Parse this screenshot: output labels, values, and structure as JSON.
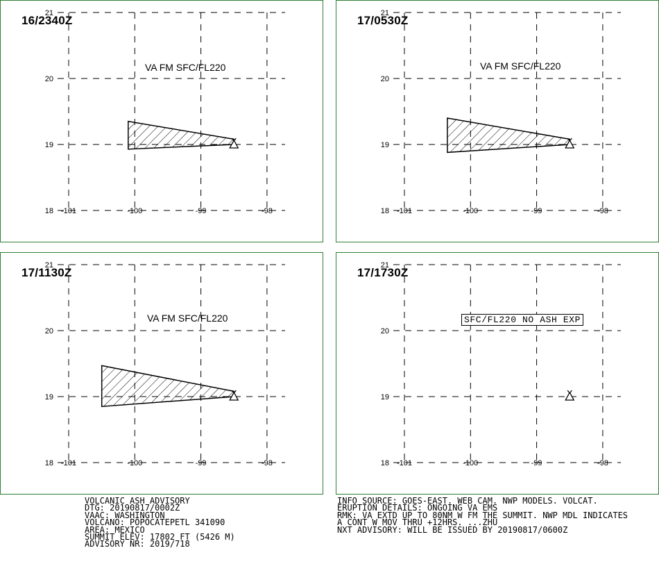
{
  "panels": [
    {
      "time": "16/2340Z",
      "label": "VA FM SFC/FL220",
      "polygon": [
        [
          -100.1,
          19.35
        ],
        [
          -98.5,
          19.08
        ],
        [
          -98.5,
          19.0
        ],
        [
          -100.1,
          18.93
        ]
      ]
    },
    {
      "time": "17/0530Z",
      "label": "VA FM SFC/FL220",
      "polygon": [
        [
          -100.35,
          19.4
        ],
        [
          -98.5,
          19.08
        ],
        [
          -98.5,
          19.0
        ],
        [
          -100.35,
          18.88
        ]
      ]
    },
    {
      "time": "17/1130Z",
      "label": "VA FM SFC/FL220",
      "polygon": [
        [
          -100.5,
          19.47
        ],
        [
          -98.5,
          19.08
        ],
        [
          -98.5,
          19.0
        ],
        [
          -100.5,
          18.85
        ]
      ]
    },
    {
      "time": "17/1730Z",
      "label": "SFC/FL220 NO ASH EXP",
      "polygon": []
    }
  ],
  "map": {
    "lon_ticks": [
      -101,
      -100,
      -99,
      -98
    ],
    "lat_ticks": [
      21,
      20,
      19,
      18
    ],
    "lon_labels": [
      "-101",
      "-100",
      "-99",
      "-98"
    ],
    "lat_labels": [
      "21",
      "20",
      "19",
      "18"
    ],
    "volcano": {
      "lon": -98.5,
      "lat": 19.0
    },
    "grid_color": "#000000",
    "border_color": "#2e7d32"
  },
  "advisory": {
    "line1": "VOLCANIC ASH ADVISORY",
    "line2": "DTG: 20190817/0002Z",
    "line3": "VAAC: WASHINGTON",
    "line4": "VOLCANO: POPOCATEPETL 341090",
    "line5": "AREA: MEXICO",
    "line6": "SUMMIT ELEV: 17802 FT (5426 M)",
    "line7": "ADVISORY NR: 2019/718"
  },
  "info": {
    "line1": "INFO SOURCE: GOES-EAST. WEB CAM. NWP MODELS. VOLCAT.",
    "line2": "ERUPTION DETAILS: ONGOING VA EMS",
    "line3": "RMK: VA EXTD UP TO 80NM W FM THE SUMMIT. NWP MDL INDICATES",
    "line4": "A CONT W MOV THRU +12HRS. ...ZHU",
    "line5": "NXT ADVISORY: WILL BE ISSUED BY 20190817/0600Z"
  }
}
